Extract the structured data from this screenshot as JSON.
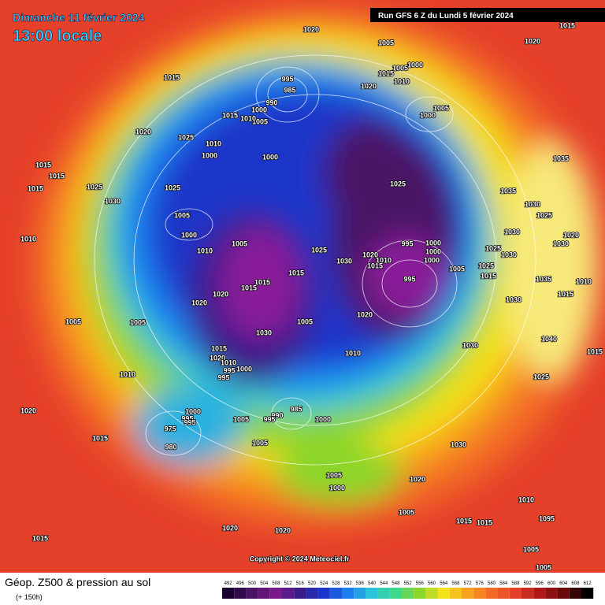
{
  "header": {
    "date": "Dimanche 11 février 2024",
    "time": "13:00 locale",
    "run": "Run GFS 6 Z du Lundi 5 février 2024"
  },
  "map": {
    "copyright": "Copyright © 2024 Meteociel.fr",
    "isobar_labels": [
      1020,
      1005,
      1020,
      1015,
      1005,
      1000,
      1015,
      1010,
      1020,
      995,
      985,
      990,
      1000,
      1005,
      1015,
      1010,
      1005,
      1000,
      1015,
      1020,
      1025,
      1010,
      1000,
      1000,
      1035,
      1015,
      1015,
      1015,
      1025,
      1030,
      1025,
      1025,
      1035,
      1030,
      1025,
      1005,
      1000,
      1010,
      1030,
      1020,
      1030,
      1005,
      1010,
      1025,
      995,
      1000,
      1000,
      1030,
      1020,
      1010,
      1015,
      1000,
      1005,
      1025,
      1030,
      1025,
      1015,
      1015,
      995,
      1015,
      1015,
      1035,
      1010,
      1020,
      1015,
      1020,
      1030,
      1005,
      1005,
      1020,
      1005,
      1030,
      1040,
      1015,
      1010,
      1030,
      1015,
      1020,
      1010,
      1000,
      995,
      995,
      1010,
      1025,
      1000,
      985,
      990,
      995,
      995,
      995,
      1005,
      1000,
      1020,
      975,
      1015,
      980,
      1005,
      1030,
      1005,
      1020,
      1000,
      1010,
      1005,
      1015,
      1015,
      1095,
      1020,
      1020,
      1015,
      1005,
      1005
    ]
  },
  "legend": {
    "title": "Géop. Z500 & pression au sol",
    "lead": "(+ 150h)",
    "scale": [
      492,
      496,
      500,
      504,
      508,
      512,
      516,
      520,
      524,
      528,
      532,
      536,
      540,
      544,
      548,
      552,
      556,
      560,
      564,
      568,
      572,
      576,
      580,
      584,
      588,
      592,
      596,
      600,
      604,
      608,
      612
    ]
  }
}
